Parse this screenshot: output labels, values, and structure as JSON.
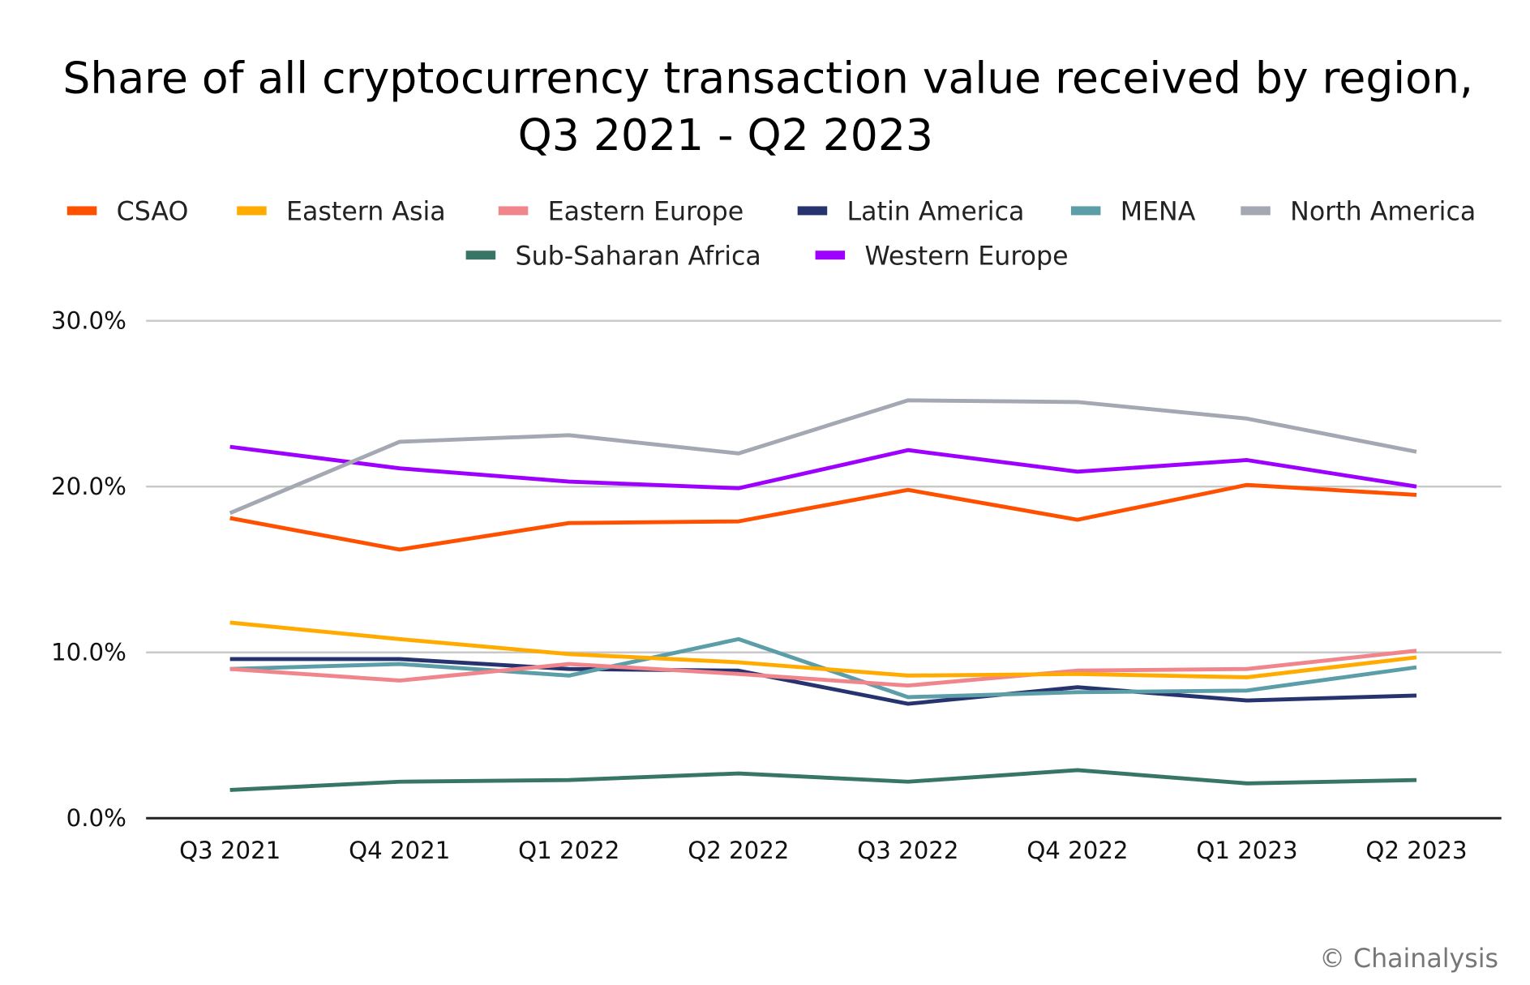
{
  "chart_data": {
    "type": "line",
    "title": "Share of all cryptocurrency transaction value received by region,",
    "title_line2": "Q3 2021 - Q2 2023",
    "xlabel": "",
    "ylabel": "",
    "categories": [
      "Q3 2021",
      "Q4 2021",
      "Q1 2022",
      "Q2 2022",
      "Q3 2022",
      "Q4 2022",
      "Q1 2023",
      "Q2 2023"
    ],
    "ylim": [
      0,
      30
    ],
    "yticks": [
      "0.0%",
      "10.0%",
      "20.0%",
      "30.0%"
    ],
    "grid": true,
    "legend_placement": "top",
    "series": [
      {
        "name": "CSAO",
        "color": "#ff5000",
        "values": [
          18.1,
          16.2,
          17.8,
          17.9,
          19.8,
          18.0,
          20.1,
          19.5
        ]
      },
      {
        "name": "Eastern Asia",
        "color": "#ffab00",
        "values": [
          11.8,
          10.8,
          9.9,
          9.4,
          8.6,
          8.7,
          8.5,
          9.7
        ]
      },
      {
        "name": "Eastern Europe",
        "color": "#f0868c",
        "values": [
          9.0,
          8.3,
          9.3,
          8.7,
          8.0,
          8.9,
          9.0,
          10.1
        ]
      },
      {
        "name": "Latin America",
        "color": "#27336e",
        "values": [
          9.6,
          9.6,
          9.0,
          8.9,
          6.9,
          7.9,
          7.1,
          7.4
        ]
      },
      {
        "name": "MENA",
        "color": "#5b9ea8",
        "values": [
          9.0,
          9.3,
          8.6,
          10.8,
          7.3,
          7.6,
          7.7,
          9.1
        ]
      },
      {
        "name": "North America",
        "color": "#a3a8b3",
        "values": [
          18.4,
          22.7,
          23.1,
          22.0,
          25.2,
          25.1,
          24.1,
          22.1
        ]
      },
      {
        "name": "Sub-Saharan Africa",
        "color": "#377566",
        "values": [
          1.7,
          2.2,
          2.3,
          2.7,
          2.2,
          2.9,
          2.1,
          2.3
        ]
      },
      {
        "name": "Western Europe",
        "color": "#9d00ff",
        "values": [
          22.4,
          21.1,
          20.3,
          19.9,
          22.2,
          20.9,
          21.6,
          20.0
        ]
      }
    ]
  },
  "credit": "© Chainalysis"
}
